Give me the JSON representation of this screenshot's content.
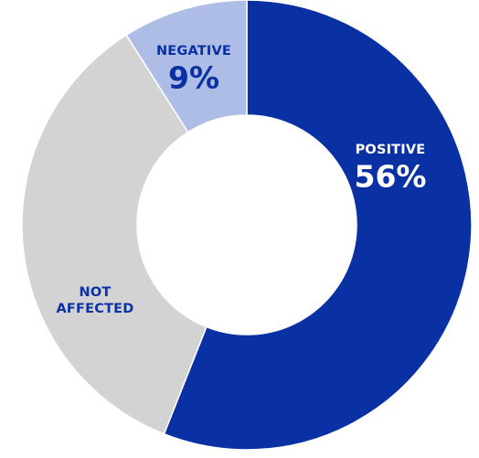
{
  "chart_data": {
    "type": "donut",
    "title": "",
    "series": [
      {
        "label_lines": [
          "POSITIVE"
        ],
        "value": 56,
        "value_label": "56%",
        "color": "#0a31a3",
        "text_color": "#ffffff"
      },
      {
        "label_lines": [
          "NOT",
          "AFFECTED"
        ],
        "value": 35,
        "value_label": "",
        "color": "#d3d3d3",
        "text_color": "#0a31a3"
      },
      {
        "label_lines": [
          "NEGATIVE"
        ],
        "value": 9,
        "value_label": "9%",
        "color": "#aebde5",
        "text_color": "#0a31a3"
      }
    ],
    "start": "12 o'clock",
    "direction": "clockwise",
    "slice_separator_color": "#ffffff",
    "background": "#ffffff"
  }
}
